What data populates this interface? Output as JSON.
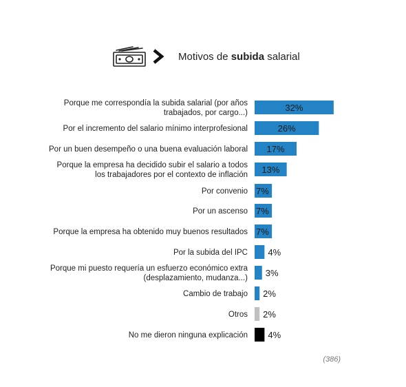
{
  "header": {
    "title_prefix": "Motivos de ",
    "title_bold": "subida",
    "title_suffix": " salarial",
    "icon": "money-bill-icon",
    "arrow_icon": "chevron-right-icon"
  },
  "chart_data": {
    "type": "bar",
    "orientation": "horizontal",
    "title": "Motivos de subida salarial",
    "categories": [
      [
        "Porque me correspondía la subida salarial (por años",
        "trabajados, por cargo...)"
      ],
      [
        "Por el incremento del salario mínimo interprofesional"
      ],
      [
        "Por un buen desempeño o una buena evaluación laboral"
      ],
      [
        "Porque la empresa ha decidido subir el salario a todos",
        "los trabajadores por el contexto de inflación"
      ],
      [
        "Por convenio"
      ],
      [
        "Por un ascenso"
      ],
      [
        "Porque la empresa ha obtenido muy buenos resultados"
      ],
      [
        "Por la subida del IPC"
      ],
      [
        "Porque mi puesto requería un esfuerzo económico extra",
        "(desplazamiento, mudanza...)"
      ],
      [
        "Cambio de trabajo"
      ],
      [
        "Otros"
      ],
      [
        "No me dieron ninguna explicación"
      ]
    ],
    "values": [
      32,
      26,
      17,
      13,
      7,
      7,
      7,
      4,
      3,
      2,
      2,
      4
    ],
    "value_labels": [
      "32%",
      "26%",
      "17%",
      "13%",
      "7%",
      "7%",
      "7%",
      "4%",
      "3%",
      "2%",
      "2%",
      "4%"
    ],
    "colors": [
      "#2383c4",
      "#2383c4",
      "#2383c4",
      "#2383c4",
      "#2383c4",
      "#2383c4",
      "#2383c4",
      "#2383c4",
      "#2383c4",
      "#2383c4",
      "#c0c0c0",
      "#000000"
    ],
    "unit": "%",
    "sample_size": "(386)"
  }
}
